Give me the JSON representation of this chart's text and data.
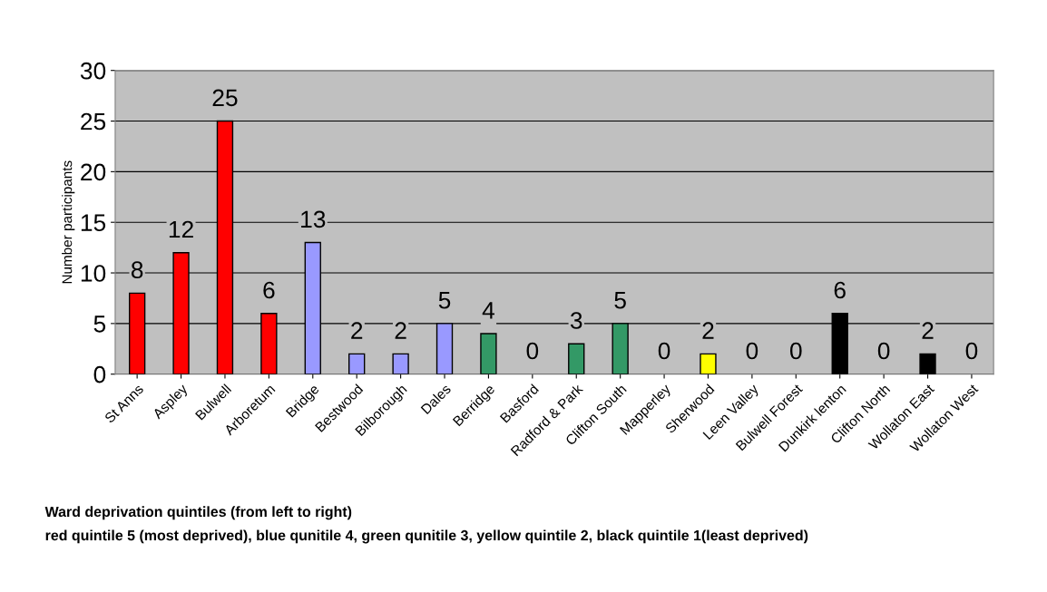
{
  "chart_data": {
    "type": "bar",
    "categories": [
      "St Anns",
      "Aspley",
      "Bulwell",
      "Arboretum",
      "Bridge",
      "Bestwood",
      "Bilborough",
      "Dales",
      "Berridge",
      "Basford",
      "Radford & Park",
      "Clifton South",
      "Mapperley",
      "Sherwood",
      "Leen Valley",
      "Bulwell Forest",
      "Dunkirk lenton",
      "Clifton North",
      "Wollaton East",
      "Wollaton West"
    ],
    "values": [
      8,
      12,
      25,
      6,
      13,
      2,
      2,
      5,
      4,
      0,
      3,
      5,
      0,
      2,
      0,
      0,
      6,
      0,
      2,
      0
    ],
    "colors": [
      "#ff0000",
      "#ff0000",
      "#ff0000",
      "#ff0000",
      "#9999ff",
      "#9999ff",
      "#9999ff",
      "#9999ff",
      "#339966",
      null,
      "#339966",
      "#339966",
      null,
      "#ffff00",
      null,
      null,
      "#000000",
      null,
      "#000000",
      null
    ],
    "ylabel": "Number participants",
    "ylim": [
      0,
      30
    ],
    "yticks": [
      0,
      5,
      10,
      15,
      20,
      25,
      30
    ],
    "grid": "y",
    "data_labels": true,
    "legend": false,
    "annotations": [
      "Ward deprivation quintiles (from left to right)",
      "red quintile 5 (most deprived), blue qunitile 4, green qunitile 3, yellow quintile 2, black quintile 1(least deprived)"
    ]
  }
}
